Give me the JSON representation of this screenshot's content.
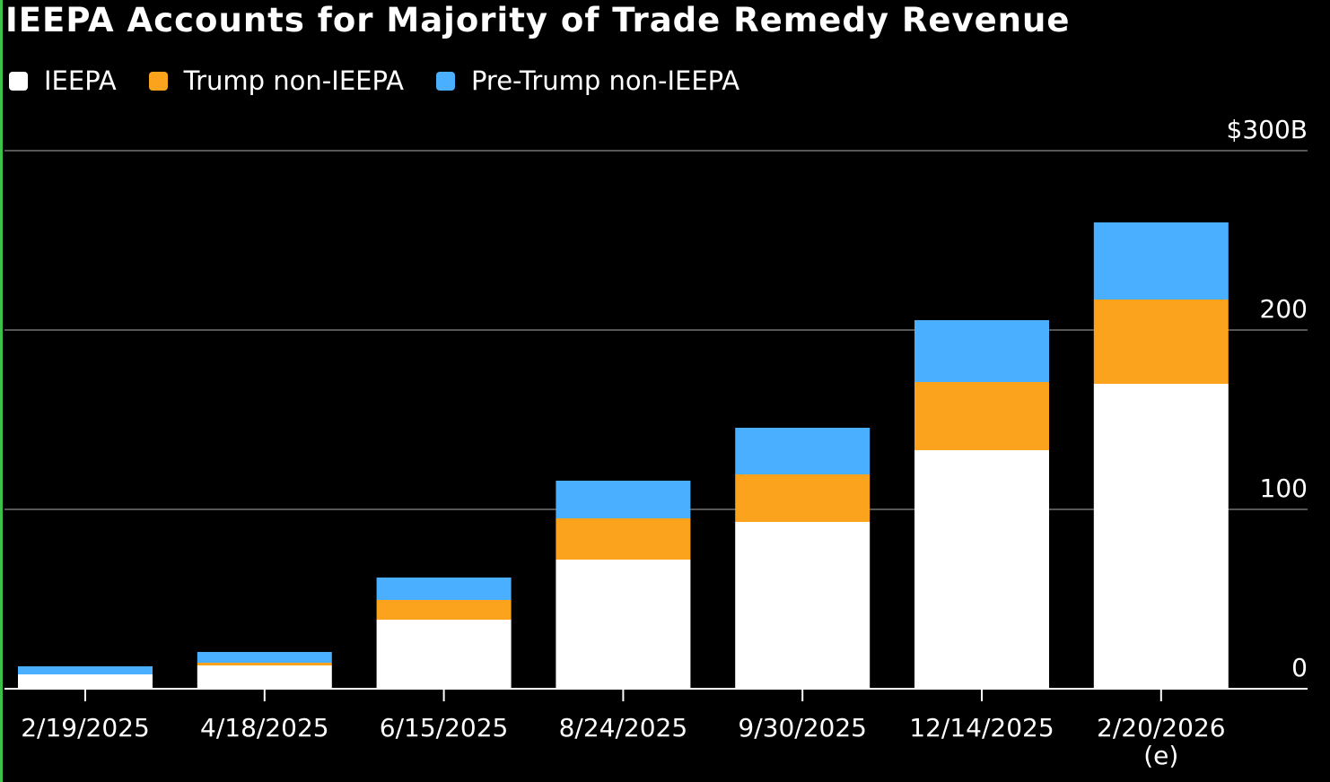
{
  "chart_data": {
    "type": "bar",
    "stacked": true,
    "title": "IEEPA Accounts for Majority of Trade Remedy Revenue",
    "categories": [
      "2/19/2025",
      "4/18/2025",
      "6/15/2025",
      "8/24/2025",
      "9/30/2025",
      "12/14/2025",
      "2/20/2026"
    ],
    "category_sublabels": [
      "",
      "",
      "",
      "",
      "",
      "",
      "(e)"
    ],
    "series": [
      {
        "name": "IEEPA",
        "color": "#ffffff",
        "values": [
          8,
          13,
          38.5,
          72,
          93,
          133,
          170
        ]
      },
      {
        "name": "Trump non-IEEPA",
        "color": "#fca31d",
        "values": [
          0,
          1.5,
          11,
          23,
          26.5,
          38,
          47
        ]
      },
      {
        "name": "Pre-Trump non-IEEPA",
        "color": "#4aafff",
        "values": [
          4.5,
          6,
          12.5,
          21,
          26,
          34.5,
          43
        ]
      }
    ],
    "ylim": [
      0,
      300
    ],
    "y_ticks": [
      {
        "value": 0,
        "label": "0"
      },
      {
        "value": 100,
        "label": "100"
      },
      {
        "value": 200,
        "label": "200"
      },
      {
        "value": 300,
        "label": "$300B"
      }
    ],
    "y_axis_side": "right",
    "grid": true,
    "legend_position": "top-left"
  }
}
